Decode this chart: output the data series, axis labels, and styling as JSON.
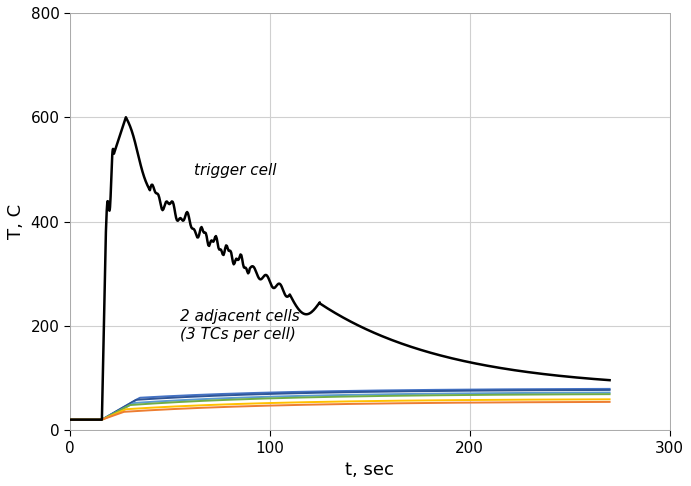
{
  "title": "",
  "xlabel": "t, sec",
  "ylabel": "T, C",
  "xlim": [
    0,
    300
  ],
  "ylim": [
    0,
    800
  ],
  "xticks": [
    0,
    100,
    200,
    300
  ],
  "yticks": [
    0,
    200,
    400,
    600,
    800
  ],
  "annotation_trigger": "trigger cell",
  "annotation_adjacent": "2 adjacent cells\n(3 TCs per cell)",
  "background_color": "#ffffff",
  "grid_color": "#d0d0d0",
  "trigger_color": "#000000",
  "trigger_linewidth": 1.8,
  "adjacent_linewidth": 1.4
}
